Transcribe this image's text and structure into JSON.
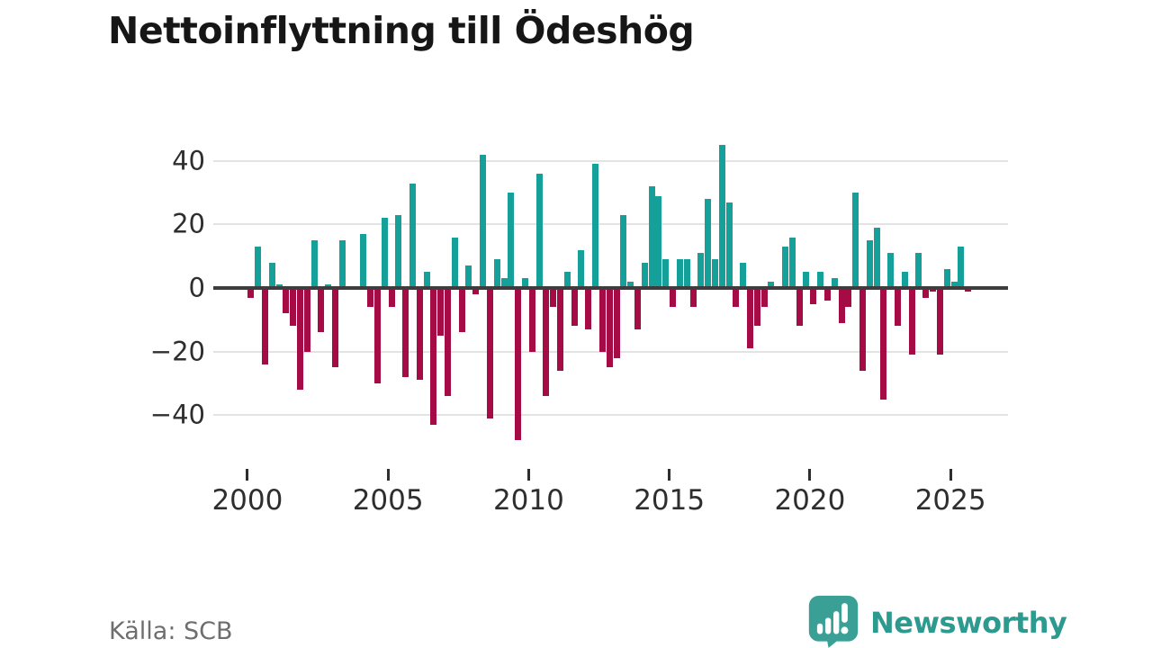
{
  "title": "Nettoinflyttning till Ödeshög",
  "source": "Källa: SCB",
  "branding": {
    "name": "Newsworthy",
    "logo_icon": "bar-chart-speech-bubble-icon",
    "text_color": "#2d9a90",
    "bubble_color": "#3aa096"
  },
  "chart_data": {
    "type": "bar",
    "title": "Nettoinflyttning till Ödeshög",
    "frequency": "quarterly",
    "start_year": 2000,
    "x_label_years": [
      2000,
      2005,
      2010,
      2015,
      2020,
      2025
    ],
    "y_ticks": [
      40,
      20,
      0,
      -20,
      -40
    ],
    "y_gridlines": [
      40,
      20,
      -20,
      -40
    ],
    "ylim": [
      -52,
      50
    ],
    "grid": "horizontal-only",
    "legend": "none",
    "positive_color": "#16a09a",
    "negative_color": "#a50b44",
    "values": [
      -3,
      13,
      -24,
      8,
      1,
      -8,
      -12,
      -32,
      -20,
      15,
      -14,
      1,
      -25,
      15,
      0,
      0,
      17,
      -6,
      -30,
      22,
      -6,
      23,
      -28,
      33,
      -29,
      5,
      -43,
      -15,
      -34,
      16,
      -14,
      7,
      -2,
      42,
      -41,
      9,
      3,
      30,
      -48,
      3,
      -20,
      36,
      -34,
      -6,
      -26,
      5,
      -12,
      12,
      -13,
      39,
      -20,
      -25,
      -22,
      23,
      2,
      -13,
      8,
      32,
      29,
      9,
      -6,
      9,
      9,
      -6,
      11,
      28,
      9,
      45,
      27,
      -6,
      8,
      -19,
      -12,
      -6,
      2,
      0,
      13,
      16,
      -12,
      5,
      -5,
      5,
      -4,
      3,
      -11,
      -6,
      30,
      -26,
      15,
      19,
      -35,
      11,
      -12,
      5,
      -21,
      11,
      -3,
      -1,
      -21,
      6,
      2,
      13,
      -1
    ]
  }
}
